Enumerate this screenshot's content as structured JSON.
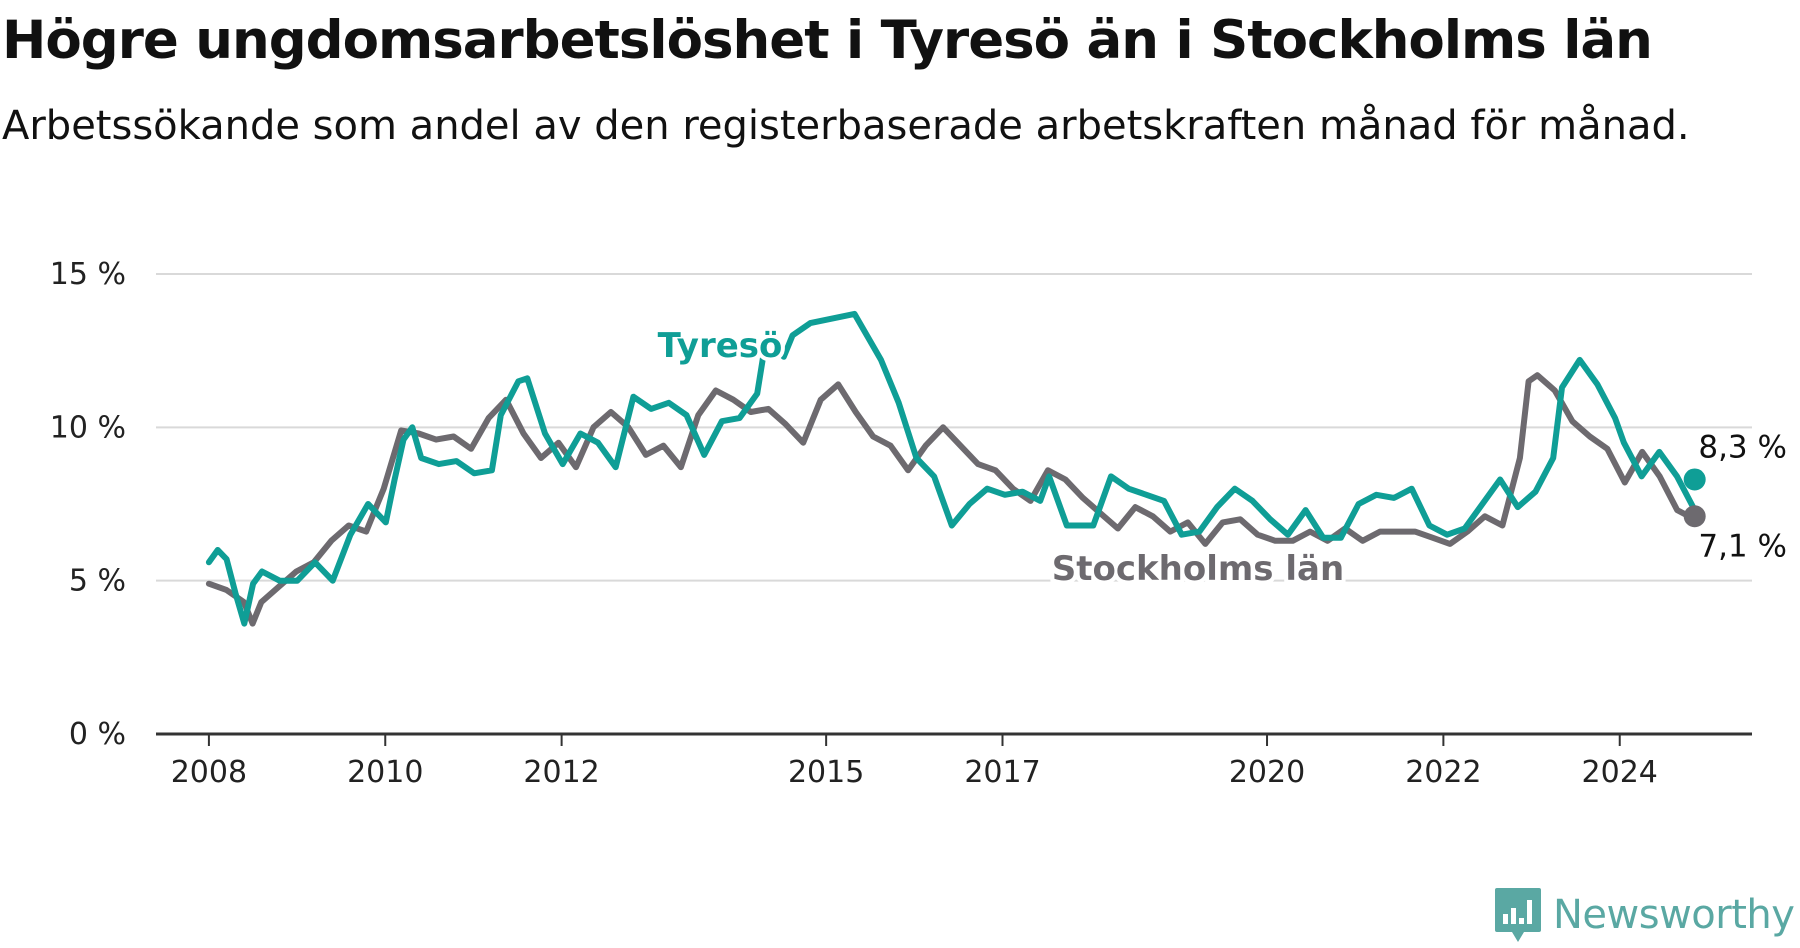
{
  "title": "Högre ungdomsarbetslöshet i Tyresö än i Stockholms län",
  "subtitle": "Arbetssökande som andel av den registerbaserade arbetskraften månad för månad.",
  "brand": {
    "name": "Newsworthy",
    "color": "#5aa8a3",
    "icon": "newsworthy-logo-icon"
  },
  "chart_data": {
    "type": "line",
    "title": "Högre ungdomsarbetslöshet i Tyresö än i Stockholms län",
    "ylim": [
      0,
      15
    ],
    "xlim": [
      2007.4,
      2025.5
    ],
    "yticks": [
      0,
      5,
      10,
      15
    ],
    "ytick_labels": [
      "0 %",
      "5 %",
      "10 %",
      "15 %"
    ],
    "xticks": [
      2008,
      2010,
      2012,
      2015,
      2017,
      2020,
      2022,
      2024
    ],
    "xtick_labels": [
      "2008",
      "2010",
      "2012",
      "2015",
      "2017",
      "2020",
      "2022",
      "2024"
    ],
    "grid": true,
    "legend": "inline labels",
    "series": [
      {
        "name": "Stockholms län",
        "color": "#6d6a6f",
        "end_label": "7,1 %",
        "points": [
          [
            2008.0,
            4.9
          ],
          [
            2008.2,
            4.7
          ],
          [
            2008.4,
            4.3
          ],
          [
            2008.5,
            3.6
          ],
          [
            2008.6,
            4.3
          ],
          [
            2008.8,
            4.8
          ],
          [
            2009.0,
            5.3
          ],
          [
            2009.2,
            5.6
          ],
          [
            2009.4,
            6.3
          ],
          [
            2009.6,
            6.8
          ],
          [
            2009.8,
            6.6
          ],
          [
            2010.0,
            8.0
          ],
          [
            2010.2,
            9.9
          ],
          [
            2010.4,
            9.8
          ],
          [
            2010.6,
            9.6
          ],
          [
            2010.8,
            9.7
          ],
          [
            2011.0,
            9.3
          ],
          [
            2011.2,
            10.3
          ],
          [
            2011.4,
            10.9
          ],
          [
            2011.6,
            9.8
          ],
          [
            2011.8,
            9.0
          ],
          [
            2012.0,
            9.5
          ],
          [
            2012.2,
            8.7
          ],
          [
            2012.4,
            10.0
          ],
          [
            2012.6,
            10.5
          ],
          [
            2012.8,
            10.0
          ],
          [
            2013.0,
            9.1
          ],
          [
            2013.2,
            9.4
          ],
          [
            2013.4,
            8.7
          ],
          [
            2013.6,
            10.4
          ],
          [
            2013.8,
            11.2
          ],
          [
            2014.0,
            10.9
          ],
          [
            2014.2,
            10.5
          ],
          [
            2014.4,
            10.6
          ],
          [
            2014.6,
            10.1
          ],
          [
            2014.8,
            9.5
          ],
          [
            2015.0,
            10.9
          ],
          [
            2015.2,
            11.4
          ],
          [
            2015.4,
            10.5
          ],
          [
            2015.6,
            9.7
          ],
          [
            2015.8,
            9.4
          ],
          [
            2016.0,
            8.6
          ],
          [
            2016.2,
            9.4
          ],
          [
            2016.4,
            10.0
          ],
          [
            2016.6,
            9.4
          ],
          [
            2016.8,
            8.8
          ],
          [
            2017.0,
            8.6
          ],
          [
            2017.2,
            8.0
          ],
          [
            2017.4,
            7.6
          ],
          [
            2017.6,
            8.6
          ],
          [
            2017.8,
            8.3
          ],
          [
            2018.0,
            7.7
          ],
          [
            2018.2,
            7.2
          ],
          [
            2018.4,
            6.7
          ],
          [
            2018.6,
            7.4
          ],
          [
            2018.8,
            7.1
          ],
          [
            2019.0,
            6.6
          ],
          [
            2019.2,
            6.9
          ],
          [
            2019.4,
            6.2
          ],
          [
            2019.6,
            6.9
          ],
          [
            2019.8,
            7.0
          ],
          [
            2020.0,
            6.5
          ],
          [
            2020.2,
            6.3
          ],
          [
            2020.4,
            6.3
          ],
          [
            2020.6,
            6.6
          ],
          [
            2020.8,
            6.3
          ],
          [
            2021.0,
            6.7
          ],
          [
            2021.2,
            6.3
          ],
          [
            2021.4,
            6.6
          ],
          [
            2021.6,
            6.6
          ],
          [
            2021.8,
            6.6
          ],
          [
            2022.0,
            6.4
          ],
          [
            2022.2,
            6.2
          ],
          [
            2022.4,
            6.6
          ],
          [
            2022.6,
            7.1
          ],
          [
            2022.8,
            6.8
          ],
          [
            2023.0,
            9.0
          ],
          [
            2023.1,
            11.5
          ],
          [
            2023.2,
            11.7
          ],
          [
            2023.4,
            11.2
          ],
          [
            2023.6,
            10.2
          ],
          [
            2023.8,
            9.7
          ],
          [
            2024.0,
            9.3
          ],
          [
            2024.2,
            8.2
          ],
          [
            2024.4,
            9.2
          ],
          [
            2024.6,
            8.4
          ],
          [
            2024.8,
            7.3
          ],
          [
            2025.0,
            7.0
          ]
        ],
        "points_note": ""
      },
      {
        "name": "Tyresö",
        "color": "#0f9e96",
        "end_label": "8,3 %",
        "points": []
      }
    ]
  }
}
